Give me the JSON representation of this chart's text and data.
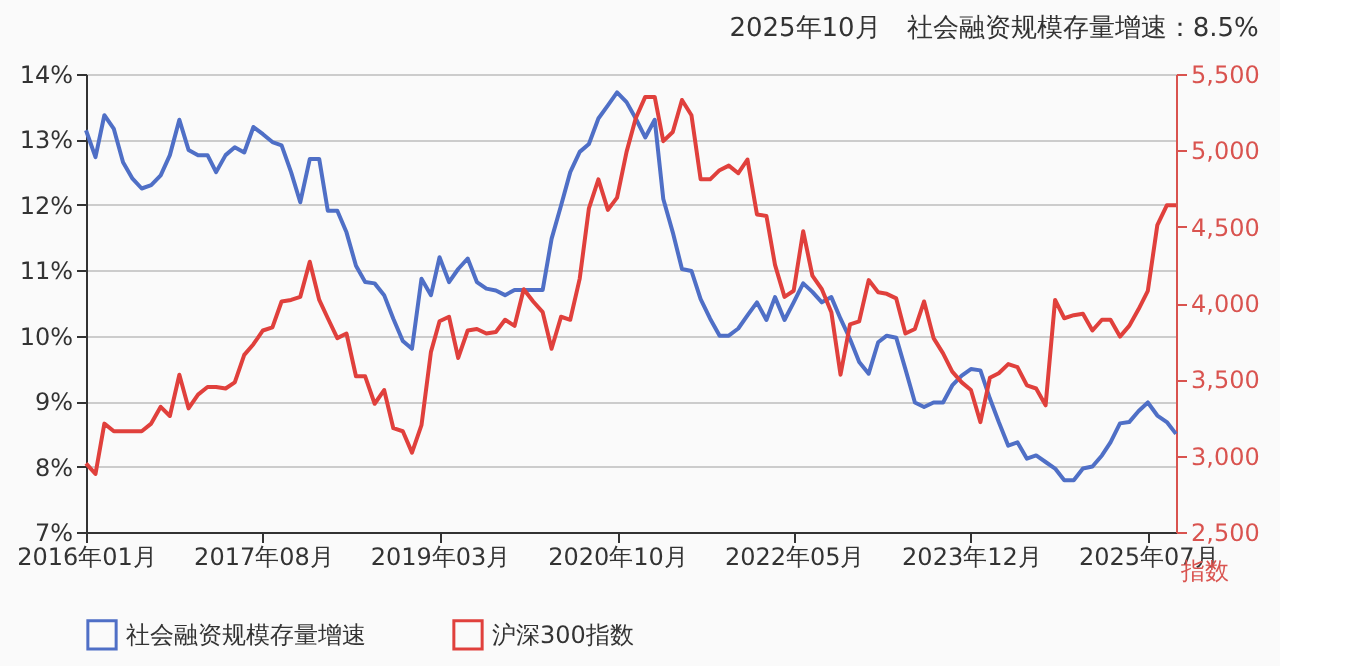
{
  "chart_data": {
    "type": "line",
    "title": "2025年10月　社会融资规模存量增速：8.5%",
    "y2label": "指数",
    "x": [
      "2016-01",
      "2016-02",
      "2016-03",
      "2016-04",
      "2016-05",
      "2016-06",
      "2016-07",
      "2016-08",
      "2016-09",
      "2016-10",
      "2016-11",
      "2016-12",
      "2017-01",
      "2017-02",
      "2017-03",
      "2017-04",
      "2017-05",
      "2017-06",
      "2017-07",
      "2017-08",
      "2017-09",
      "2017-10",
      "2017-11",
      "2017-12",
      "2018-01",
      "2018-02",
      "2018-03",
      "2018-04",
      "2018-05",
      "2018-06",
      "2018-07",
      "2018-08",
      "2018-09",
      "2018-10",
      "2018-11",
      "2018-12",
      "2019-01",
      "2019-02",
      "2019-03",
      "2019-04",
      "2019-05",
      "2019-06",
      "2019-07",
      "2019-08",
      "2019-09",
      "2019-10",
      "2019-11",
      "2019-12",
      "2020-01",
      "2020-02",
      "2020-03",
      "2020-04",
      "2020-05",
      "2020-06",
      "2020-07",
      "2020-08",
      "2020-09",
      "2020-10",
      "2020-11",
      "2020-12",
      "2021-01",
      "2021-02",
      "2021-03",
      "2021-04",
      "2021-05",
      "2021-06",
      "2021-07",
      "2021-08",
      "2021-09",
      "2021-10",
      "2021-11",
      "2021-12",
      "2022-01",
      "2022-02",
      "2022-03",
      "2022-04",
      "2022-05",
      "2022-06",
      "2022-07",
      "2022-08",
      "2022-09",
      "2022-10",
      "2022-11",
      "2022-12",
      "2023-01",
      "2023-02",
      "2023-03",
      "2023-04",
      "2023-05",
      "2023-06",
      "2023-07",
      "2023-08",
      "2023-09",
      "2023-10",
      "2023-11",
      "2023-12",
      "2024-01",
      "2024-02",
      "2024-03",
      "2024-04",
      "2024-05",
      "2024-06",
      "2024-07",
      "2024-08",
      "2024-09",
      "2024-10",
      "2024-11",
      "2024-12",
      "2025-01",
      "2025-02",
      "2025-03",
      "2025-04",
      "2025-05",
      "2025-06",
      "2025-07",
      "2025-08",
      "2025-09",
      "2025-10"
    ],
    "series": [
      {
        "name": "社会融资规模存量增速",
        "color": "#4f6fc6",
        "values": [
          13.14,
          12.73,
          13.37,
          13.16,
          12.65,
          12.4,
          12.25,
          12.3,
          12.45,
          12.76,
          13.3,
          12.84,
          12.76,
          12.76,
          12.5,
          12.76,
          12.88,
          12.8,
          13.19,
          13.08,
          12.96,
          12.91,
          12.5,
          12.04,
          12.7,
          12.7,
          11.91,
          11.91,
          11.58,
          11.07,
          10.82,
          10.8,
          10.62,
          10.26,
          9.92,
          9.8,
          10.87,
          10.62,
          11.2,
          10.82,
          11.02,
          11.18,
          10.82,
          10.72,
          10.69,
          10.62,
          10.7,
          10.7,
          10.7,
          10.7,
          11.48,
          11.99,
          12.5,
          12.81,
          12.93,
          13.32,
          13.52,
          13.72,
          13.57,
          13.32,
          13.03,
          13.3,
          12.09,
          11.58,
          11.02,
          10.99,
          10.56,
          10.26,
          10.0,
          10.0,
          10.11,
          10.31,
          10.51,
          10.24,
          10.59,
          10.24,
          10.51,
          10.8,
          10.67,
          10.51,
          10.59,
          10.26,
          9.95,
          9.6,
          9.42,
          9.9,
          10.0,
          9.97,
          9.49,
          8.98,
          8.91,
          8.98,
          8.98,
          9.24,
          9.39,
          9.49,
          9.47,
          9.04,
          8.68,
          8.32,
          8.37,
          8.12,
          8.17,
          8.07,
          7.97,
          7.79,
          7.79,
          7.97,
          8.0,
          8.17,
          8.37,
          8.66,
          8.68,
          8.85,
          8.98,
          8.78,
          8.68,
          8.5
        ]
      },
      {
        "name": "沪深300指数",
        "color": "#e0403c",
        "axis": "y2",
        "values": [
          2950,
          2880,
          3210,
          3160,
          3160,
          3160,
          3160,
          3210,
          3320,
          3260,
          3530,
          3310,
          3400,
          3450,
          3450,
          3440,
          3480,
          3660,
          3730,
          3820,
          3840,
          4010,
          4020,
          4040,
          4270,
          4020,
          3900,
          3770,
          3800,
          3520,
          3520,
          3340,
          3430,
          3180,
          3160,
          3020,
          3200,
          3680,
          3880,
          3910,
          3640,
          3820,
          3830,
          3800,
          3810,
          3890,
          3850,
          4090,
          4010,
          3940,
          3700,
          3910,
          3890,
          4160,
          4620,
          4810,
          4610,
          4690,
          4990,
          5210,
          5350,
          5350,
          5060,
          5120,
          5330,
          5230,
          4810,
          4810,
          4870,
          4900,
          4850,
          4940,
          4580,
          4570,
          4250,
          4040,
          4080,
          4470,
          4180,
          4090,
          3940,
          3530,
          3860,
          3880,
          4150,
          4070,
          4060,
          4030,
          3800,
          3830,
          4010,
          3770,
          3670,
          3550,
          3480,
          3430,
          3220,
          3510,
          3540,
          3600,
          3580,
          3460,
          3440,
          3330,
          4020,
          3900,
          3920,
          3930,
          3820,
          3890,
          3890,
          3780,
          3850,
          3960,
          4080,
          4510,
          4640,
          4640
        ]
      }
    ],
    "xlim": [
      "2016-01",
      "2025-10"
    ],
    "xticks": [
      {
        "value": "2016-01",
        "label": "2016年01月"
      },
      {
        "value": "2017-08",
        "label": "2017年08月"
      },
      {
        "value": "2019-03",
        "label": "2019年03月"
      },
      {
        "value": "2020-10",
        "label": "2020年10月"
      },
      {
        "value": "2022-05",
        "label": "2022年05月"
      },
      {
        "value": "2023-12",
        "label": "2023年12月"
      },
      {
        "value": "2025-07",
        "label": "2025年07月"
      }
    ],
    "ylim": [
      7,
      14
    ],
    "yticks": [
      {
        "value": 7,
        "label": "7%"
      },
      {
        "value": 8,
        "label": "8%"
      },
      {
        "value": 9,
        "label": "9%"
      },
      {
        "value": 10,
        "label": "10%"
      },
      {
        "value": 11,
        "label": "11%"
      },
      {
        "value": 12,
        "label": "12%"
      },
      {
        "value": 13,
        "label": "13%"
      },
      {
        "value": 14,
        "label": "14%"
      }
    ],
    "y2lim": [
      2500,
      5500
    ],
    "y2ticks": [
      {
        "value": 2500,
        "label": "2,500"
      },
      {
        "value": 3000,
        "label": "3,000"
      },
      {
        "value": 3500,
        "label": "3,500"
      },
      {
        "value": 4000,
        "label": "4,000"
      },
      {
        "value": 4500,
        "label": "4,500"
      },
      {
        "value": 5000,
        "label": "5,000"
      },
      {
        "value": 5500,
        "label": "5,500"
      }
    ],
    "grid": "y",
    "legend": "bottom",
    "line_style": "solid",
    "marker": "none"
  }
}
